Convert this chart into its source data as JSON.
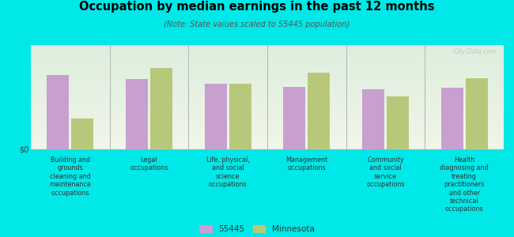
{
  "title": "Occupation by median earnings in the past 12 months",
  "subtitle": "(Note: State values scaled to 55445 population)",
  "background_color": "#00e8e8",
  "plot_bg_top": "#ddeedd",
  "plot_bg_bottom": "#f0f5e8",
  "categories": [
    "Building and\ngrounds\ncleaning and\nmaintenance\noccupations",
    "Legal\noccupations",
    "Life, physical,\nand social\nscience\noccupations",
    "Management\noccupations",
    "Community\nand social\nservice\noccupations",
    "Health\ndiagnosing and\ntreating\npractitioners\nand other\ntechnical\noccupations"
  ],
  "values_55445": [
    0.68,
    0.64,
    0.6,
    0.57,
    0.55,
    0.56
  ],
  "values_mn": [
    0.28,
    0.74,
    0.6,
    0.7,
    0.48,
    0.65
  ],
  "color_55445": "#c8a0d0",
  "color_mn": "#b8c87a",
  "ylabel": "$0",
  "legend_55445": "55445",
  "legend_mn": "Minnesota",
  "watermark": "City-Data.com",
  "bar_width": 0.28,
  "ylim": [
    0,
    0.95
  ]
}
